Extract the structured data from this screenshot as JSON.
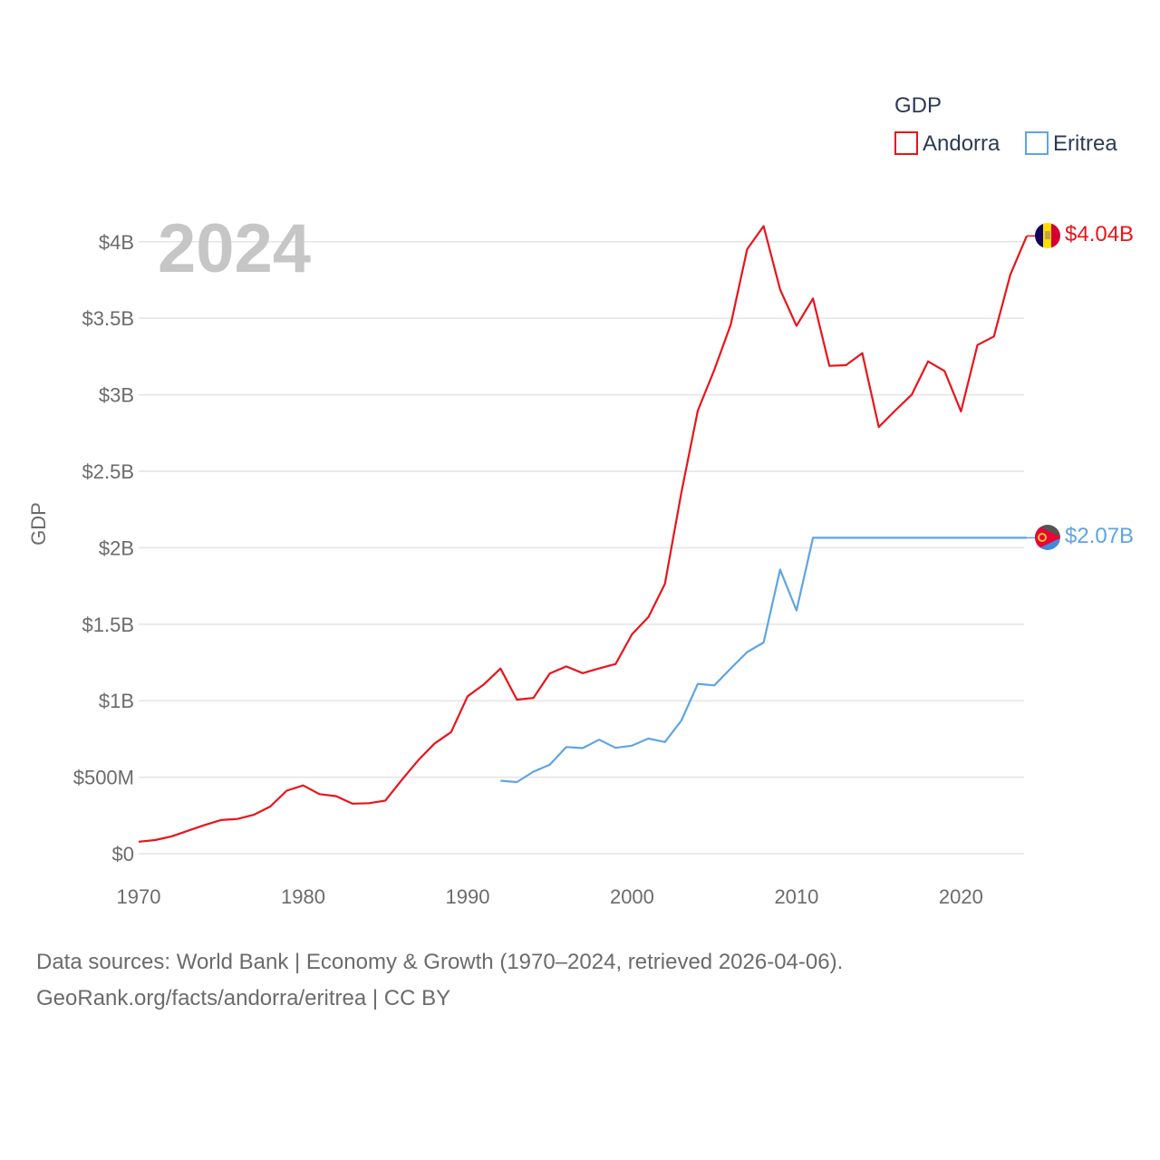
{
  "chart_data": {
    "type": "line",
    "big_year": "2024",
    "ylabel": "GDP",
    "xlim": [
      1970,
      2024
    ],
    "ylim": [
      0,
      4200000000
    ],
    "x_ticks": [
      1970,
      1980,
      1990,
      2000,
      2010,
      2020
    ],
    "y_ticks": [
      {
        "value": 0,
        "label": "$0"
      },
      {
        "value": 500000000,
        "label": "$500M"
      },
      {
        "value": 1000000000,
        "label": "$1B"
      },
      {
        "value": 1500000000,
        "label": "$1.5B"
      },
      {
        "value": 2000000000,
        "label": "$2B"
      },
      {
        "value": 2500000000,
        "label": "$2.5B"
      },
      {
        "value": 3000000000,
        "label": "$3B"
      },
      {
        "value": 3500000000,
        "label": "$3.5B"
      },
      {
        "value": 4000000000,
        "label": "$4B"
      }
    ],
    "legend": {
      "title": "GDP",
      "position": "top-right"
    },
    "series": [
      {
        "name": "Andorra",
        "color": "#e8141c",
        "end_label": "$4.04B",
        "flag": "andorra-flag",
        "x": [
          1970,
          1971,
          1972,
          1973,
          1974,
          1975,
          1976,
          1977,
          1978,
          1979,
          1980,
          1981,
          1982,
          1983,
          1984,
          1985,
          1986,
          1987,
          1988,
          1989,
          1990,
          1991,
          1992,
          1993,
          1994,
          1995,
          1996,
          1997,
          1998,
          1999,
          2000,
          2001,
          2002,
          2003,
          2004,
          2005,
          2006,
          2007,
          2008,
          2009,
          2010,
          2011,
          2012,
          2013,
          2014,
          2015,
          2016,
          2017,
          2018,
          2019,
          2020,
          2021,
          2022,
          2023,
          2024
        ],
        "values": [
          78000000,
          89000000,
          113000000,
          150000000,
          187000000,
          220000000,
          227000000,
          254000000,
          308000000,
          412000000,
          446000000,
          389000000,
          376000000,
          327000000,
          330000000,
          347000000,
          482000000,
          611000000,
          721000000,
          795000000,
          1029000000,
          1107000000,
          1210000000,
          1007000000,
          1018000000,
          1178000000,
          1224000000,
          1180000000,
          1211000000,
          1240000000,
          1434000000,
          1548000000,
          1764000000,
          2362000000,
          2896000000,
          3163000000,
          3457000000,
          3952000000,
          4102000000,
          3688000000,
          3450000000,
          3629000000,
          3189000000,
          3193000000,
          3272000000,
          2789000000,
          2897000000,
          3000000000,
          3218000000,
          3155000000,
          2891000000,
          3325000000,
          3381000000,
          3786000000,
          4038000000
        ]
      },
      {
        "name": "Eritrea",
        "color": "#5fa4e4",
        "end_label": "$2.07B",
        "flag": "eritrea-flag",
        "x": [
          1992,
          1993,
          1994,
          1995,
          1996,
          1997,
          1998,
          1999,
          2000,
          2001,
          2002,
          2003,
          2004,
          2005,
          2006,
          2007,
          2008,
          2009,
          2010,
          2011,
          2012,
          2013,
          2014,
          2015,
          2016,
          2017,
          2018,
          2019,
          2020,
          2021,
          2022,
          2023,
          2024
        ],
        "values": [
          477000000,
          468000000,
          536000000,
          582000000,
          697000000,
          690000000,
          745000000,
          692000000,
          706000000,
          753000000,
          730000000,
          871000000,
          1110000000,
          1100000000,
          1211000000,
          1318000000,
          1380000000,
          1857000000,
          1590000000,
          2065000000,
          2065000000,
          2065000000,
          2065000000,
          2065000000,
          2065000000,
          2065000000,
          2065000000,
          2065000000,
          2065000000,
          2065000000,
          2065000000,
          2065000000,
          2065000000
        ]
      }
    ]
  },
  "source": {
    "line1": "Data sources: World Bank | Economy & Growth (1970–2024, retrieved 2026-04-06).",
    "line2": "GeoRank.org/facts/andorra/eritrea | CC BY"
  }
}
